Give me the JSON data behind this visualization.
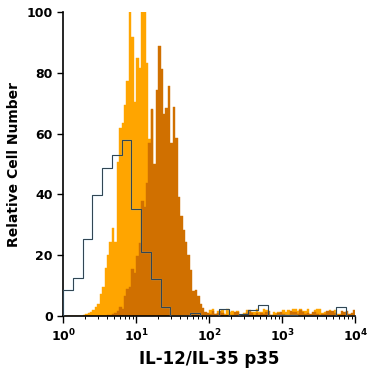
{
  "xlabel": "IL-12/IL-35 p35",
  "ylabel": "Relative Cell Number",
  "xlim_log": [
    1.0,
    10000.0
  ],
  "ylim": [
    0,
    100
  ],
  "yticks": [
    0,
    20,
    40,
    60,
    80,
    100
  ],
  "color_light_orange": "#FFA500",
  "color_dark_orange": "#D07000",
  "color_isotype_line": "#6BAED6",
  "xlabel_fontsize": 12,
  "ylabel_fontsize": 10,
  "tick_fontsize": 9
}
